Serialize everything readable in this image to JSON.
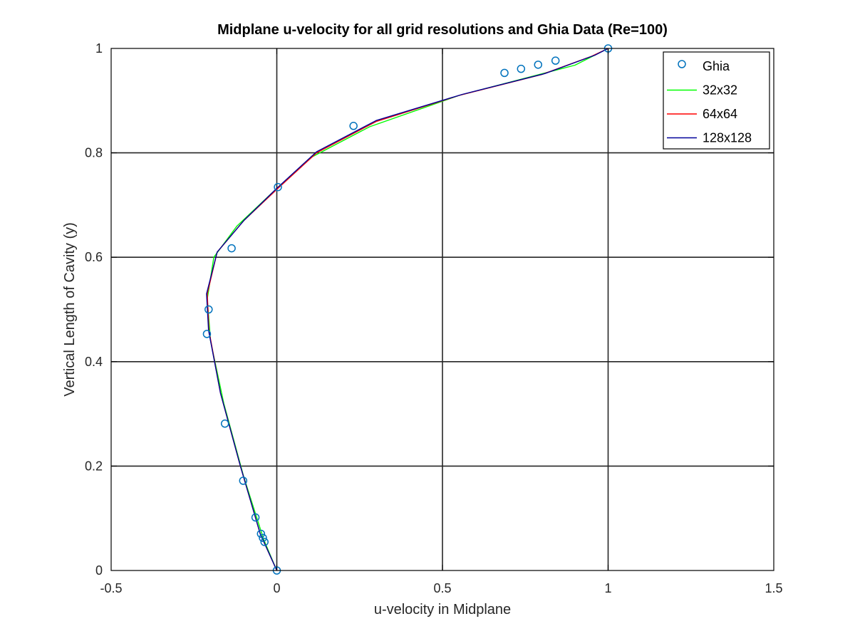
{
  "chart_data": {
    "type": "line",
    "title": "Midplane u-velocity for all grid resolutions and Ghia Data (Re=100)",
    "xlabel": "u-velocity in Midplane",
    "ylabel": "Vertical Length of Cavity (y)",
    "xlim": [
      -0.5,
      1.5
    ],
    "ylim": [
      0,
      1
    ],
    "xticks": [
      -0.5,
      0,
      0.5,
      1,
      1.5
    ],
    "xtick_labels": [
      "-0.5",
      "0",
      "0.5",
      "1",
      "1.5"
    ],
    "yticks": [
      0,
      0.2,
      0.4,
      0.6,
      0.8,
      1
    ],
    "ytick_labels": [
      "0",
      "0.2",
      "0.4",
      "0.6",
      "0.8",
      "1"
    ],
    "grid": true,
    "legend_position": "top-right",
    "colors": {
      "ghia": "#0072bd",
      "grid32": "#00ff00",
      "grid64": "#ff0000",
      "grid128": "#000099",
      "axes": "#000000"
    },
    "series": [
      {
        "name": "Ghia",
        "kind": "markers",
        "marker": "circle",
        "x": [
          0,
          -0.03717,
          -0.04192,
          -0.04775,
          -0.06434,
          -0.1015,
          -0.15662,
          -0.2109,
          -0.20581,
          -0.13641,
          0.00332,
          0.23151,
          0.68717,
          0.73722,
          0.78871,
          0.84123,
          1
        ],
        "y": [
          0,
          0.0547,
          0.0625,
          0.0703,
          0.1016,
          0.1719,
          0.2813,
          0.4531,
          0.5,
          0.6172,
          0.7344,
          0.8516,
          0.9531,
          0.9609,
          0.9688,
          0.9766,
          1
        ]
      },
      {
        "name": "32x32",
        "kind": "line",
        "x": [
          0,
          -0.04,
          -0.1,
          -0.16,
          -0.2,
          -0.21,
          -0.19,
          -0.12,
          -0.02,
          0.1,
          0.28,
          0.55,
          0.9,
          1
        ],
        "y": [
          0,
          0.06,
          0.18,
          0.32,
          0.44,
          0.52,
          0.6,
          0.66,
          0.72,
          0.79,
          0.85,
          0.91,
          0.968,
          1
        ]
      },
      {
        "name": "64x64",
        "kind": "line",
        "x": [
          0,
          -0.05,
          -0.11,
          -0.17,
          -0.205,
          -0.21,
          -0.18,
          -0.1,
          0,
          0.12,
          0.3,
          0.55,
          0.8,
          0.95,
          1
        ],
        "y": [
          0,
          0.07,
          0.2,
          0.34,
          0.46,
          0.53,
          0.61,
          0.67,
          0.73,
          0.8,
          0.86,
          0.91,
          0.95,
          0.985,
          1
        ]
      },
      {
        "name": "128x128",
        "kind": "line",
        "x": [
          0,
          -0.05,
          -0.11,
          -0.17,
          -0.206,
          -0.212,
          -0.18,
          -0.1,
          0,
          0.12,
          0.3,
          0.56,
          0.81,
          0.96,
          1
        ],
        "y": [
          0,
          0.07,
          0.2,
          0.34,
          0.46,
          0.53,
          0.61,
          0.67,
          0.732,
          0.802,
          0.862,
          0.912,
          0.952,
          0.987,
          1
        ]
      }
    ]
  }
}
